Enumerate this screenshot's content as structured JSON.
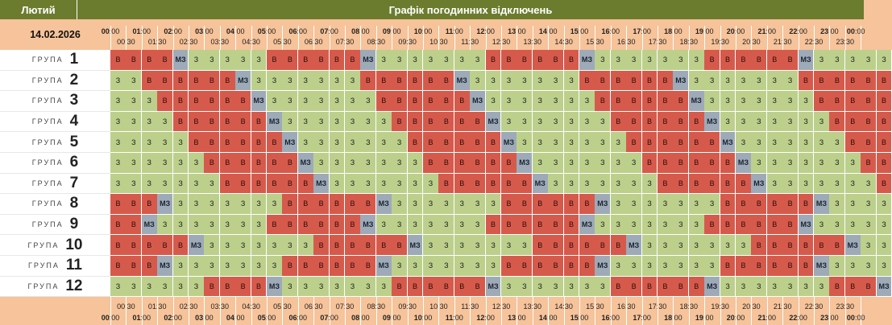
{
  "header": {
    "month": "Лютий",
    "title": "Графік погодинних відключень"
  },
  "date": "14.02.2026",
  "time_axis": {
    "hours": [
      "00",
      "01",
      "02",
      "03",
      "04",
      "05",
      "06",
      "07",
      "08",
      "09",
      "10",
      "11",
      "12",
      "13",
      "14",
      "15",
      "16",
      "17",
      "18",
      "19",
      "20",
      "21",
      "22",
      "23",
      "00"
    ],
    "hour_suffix": ":00",
    "half_hours": [
      "00:30",
      "01:30",
      "02:30",
      "03:30",
      "04:30",
      "05:30",
      "06:30",
      "07:30",
      "08:30",
      "09:30",
      "10:30",
      "11:30",
      "12:30",
      "13:30",
      "14:30",
      "15:30",
      "16:30",
      "17:30",
      "18:30",
      "19:30",
      "20:30",
      "21:30",
      "22:30",
      "23:30"
    ]
  },
  "group_word": "ГРУПА",
  "legend": {
    "on": "З",
    "off": "В",
    "maybe": "МЗ"
  },
  "colors": {
    "on": "#bcd08c",
    "off": "#d65a4c",
    "maybe": "#9eaab8",
    "header": "#6b7c2e",
    "background": "#f6c39a"
  },
  "groups": [
    {
      "number": "1",
      "schedule": "BBBBM33333BBBBBBM3333333BBBBBBM3333333BBBBBBM33333"
    },
    {
      "number": "2",
      "schedule": "33BBBBBBM3333333BBBBBBM3333333BBBBBBM3333333BBBBBB"
    },
    {
      "number": "3",
      "schedule": "333BBBBBBM3333333BBBBBBM3333333BBBBBBM3333333BBBBB"
    },
    {
      "number": "4",
      "schedule": "3333BBBBBBM3333333BBBBBBM3333333BBBBBBM3333333BBBB"
    },
    {
      "number": "5",
      "schedule": "33333BBBBBBM3333333BBBBBBM3333333BBBBBBM3333333BBB"
    },
    {
      "number": "6",
      "schedule": "333333BBBBBBM3333333BBBBBBM3333333BBBBBBM3333333BB"
    },
    {
      "number": "7",
      "schedule": "3333333BBBBBBM3333333BBBBBBM3333333BBBBBBM3333333B"
    },
    {
      "number": "8",
      "schedule": "BBBM3333333BBBBBBM3333333BBBBBBM3333333BBBBBBM3333"
    },
    {
      "number": "9",
      "schedule": "BBM3333333BBBBBBM3333333BBBBBBM3333333BBBBBBM33333"
    },
    {
      "number": "10",
      "schedule": "BBBBBM3333333BBBBBBM3333333BBBBBBM3333333BBBBBBM33"
    },
    {
      "number": "11",
      "schedule": "BBBM3333333BBBBBBM3333333BBBBBBM3333333BBBBBBM3333"
    },
    {
      "number": "12",
      "schedule": "333333BBBBM3333333BBBBBBM3333333BBBBBBM3333333BBBM"
    }
  ]
}
